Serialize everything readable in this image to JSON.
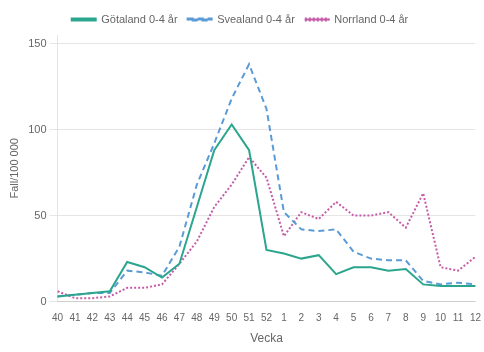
{
  "chart_data": {
    "type": "line",
    "xlabel": "Vecka",
    "ylabel": "Fall/100 000",
    "categories": [
      "40",
      "41",
      "42",
      "43",
      "44",
      "45",
      "46",
      "47",
      "48",
      "49",
      "50",
      "51",
      "52",
      "1",
      "2",
      "3",
      "4",
      "5",
      "6",
      "7",
      "8",
      "9",
      "10",
      "11",
      "12"
    ],
    "series": [
      {
        "name": "Götaland 0-4 år",
        "color": "#2ba58e",
        "line_style": "solid",
        "values": [
          3,
          4,
          5,
          6,
          23,
          20,
          14,
          22,
          55,
          88,
          103,
          88,
          30,
          28,
          25,
          27,
          16,
          20,
          20,
          18,
          19,
          10,
          9,
          9,
          9
        ]
      },
      {
        "name": "Svealand 0-4 år",
        "color": "#5b9bd5",
        "line_style": "dashed",
        "values": [
          3,
          4,
          5,
          5,
          18,
          17,
          15,
          32,
          68,
          92,
          118,
          138,
          112,
          52,
          42,
          41,
          42,
          29,
          25,
          24,
          24,
          12,
          10,
          11,
          10
        ]
      },
      {
        "name": "Norrland 0-4 år",
        "color": "#c65ca8",
        "line_style": "dotted",
        "values": [
          6,
          2,
          2,
          3,
          8,
          8,
          10,
          22,
          35,
          55,
          68,
          84,
          72,
          38,
          52,
          48,
          58,
          50,
          50,
          52,
          43,
          63,
          20,
          18,
          26
        ]
      }
    ],
    "ylim": [
      0,
      155
    ],
    "yticks": [
      0,
      50,
      100,
      150
    ],
    "grid": "y",
    "legend": "top"
  }
}
